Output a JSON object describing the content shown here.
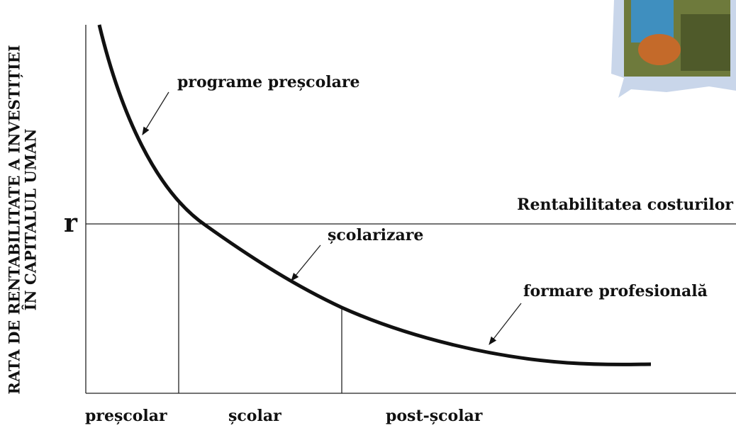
{
  "y_axis_title": [
    "RATA DE RENTABILITATE A INVESTIȚIEI",
    "ÎN CAPITALUL UMAN"
  ],
  "r_label": "r",
  "cost_line_label": "Rentabilitatea costurilor",
  "curve_labels": [
    "programe preșcolare",
    "școlarizare",
    "formare profesională"
  ],
  "x_segments": [
    "preșcolar",
    "școlar",
    "post-școlar"
  ]
}
